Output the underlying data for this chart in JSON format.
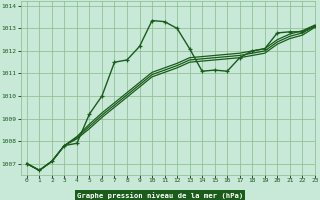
{
  "bg_color": "#c8e8d8",
  "plot_bg": "#c8e8d8",
  "grid_color": "#88bb88",
  "line_color": "#1a5c1a",
  "xlabel": "Graphe pression niveau de la mer (hPa)",
  "xlim": [
    -0.5,
    23
  ],
  "ylim": [
    1006.5,
    1014.2
  ],
  "yticks": [
    1007,
    1008,
    1009,
    1010,
    1011,
    1012,
    1013,
    1014
  ],
  "xticks": [
    0,
    1,
    2,
    3,
    4,
    5,
    6,
    7,
    8,
    9,
    10,
    11,
    12,
    13,
    14,
    15,
    16,
    17,
    18,
    19,
    20,
    21,
    22,
    23
  ],
  "series1": [
    1007.0,
    1006.7,
    1007.1,
    1007.8,
    1007.9,
    1009.2,
    1010.0,
    1011.5,
    1011.6,
    1012.2,
    1013.35,
    1013.3,
    1013.0,
    1012.1,
    1011.1,
    1011.15,
    1011.1,
    1011.7,
    1012.0,
    1012.1,
    1012.8,
    1012.85,
    1012.85,
    1013.1
  ],
  "series2": [
    1007.0,
    1006.7,
    1007.1,
    1007.8,
    1008.1,
    1008.55,
    1009.05,
    1009.5,
    1009.95,
    1010.4,
    1010.85,
    1011.05,
    1011.25,
    1011.5,
    1011.55,
    1011.6,
    1011.65,
    1011.7,
    1011.8,
    1011.9,
    1012.3,
    1012.55,
    1012.7,
    1013.05
  ],
  "series3": [
    1007.0,
    1006.7,
    1007.1,
    1007.8,
    1008.15,
    1008.65,
    1009.15,
    1009.6,
    1010.05,
    1010.5,
    1010.95,
    1011.15,
    1011.35,
    1011.6,
    1011.65,
    1011.7,
    1011.75,
    1011.8,
    1011.9,
    1012.0,
    1012.4,
    1012.65,
    1012.8,
    1013.1
  ],
  "series4": [
    1007.0,
    1006.7,
    1007.1,
    1007.8,
    1008.2,
    1008.75,
    1009.25,
    1009.7,
    1010.15,
    1010.6,
    1011.05,
    1011.25,
    1011.45,
    1011.7,
    1011.75,
    1011.8,
    1011.85,
    1011.9,
    1012.0,
    1012.1,
    1012.5,
    1012.75,
    1012.9,
    1013.15
  ]
}
